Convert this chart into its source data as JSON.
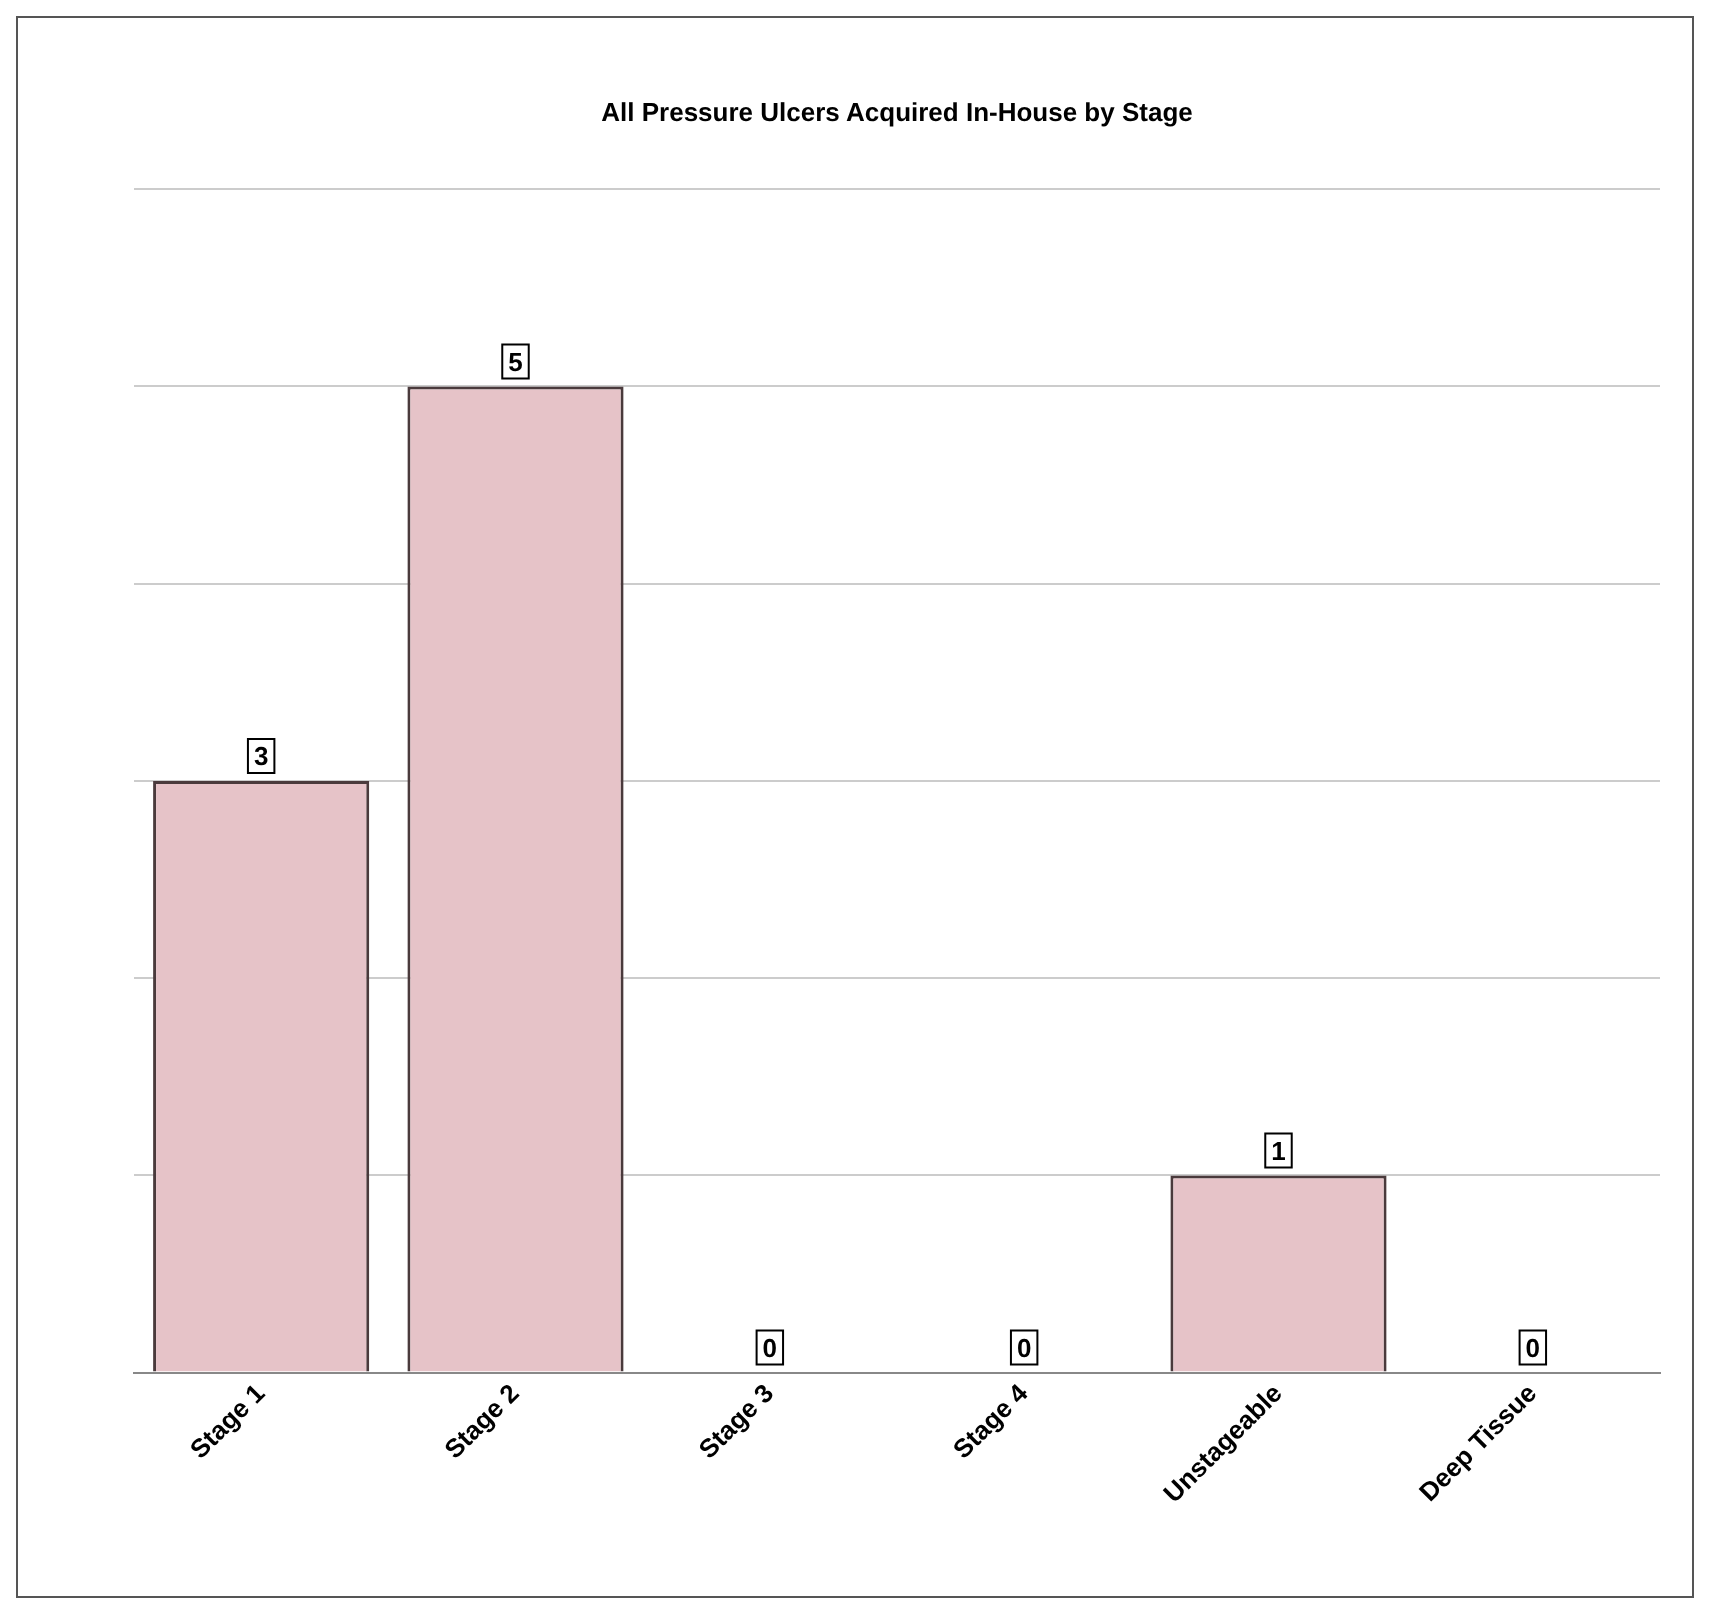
{
  "chart_data": {
    "type": "bar",
    "title": "All Pressure Ulcers Acquired In-House by Stage",
    "categories": [
      "Stage 1",
      "Stage 2",
      "Stage 3",
      "Stage 4",
      "Unstageable",
      "Deep Tissue"
    ],
    "values": [
      3,
      5,
      0,
      0,
      1,
      0
    ],
    "color": "#e6c3c8",
    "ylim": [
      0,
      6
    ],
    "tick_labels": "x",
    "grid": "y",
    "legend": false,
    "data_labels": true
  }
}
